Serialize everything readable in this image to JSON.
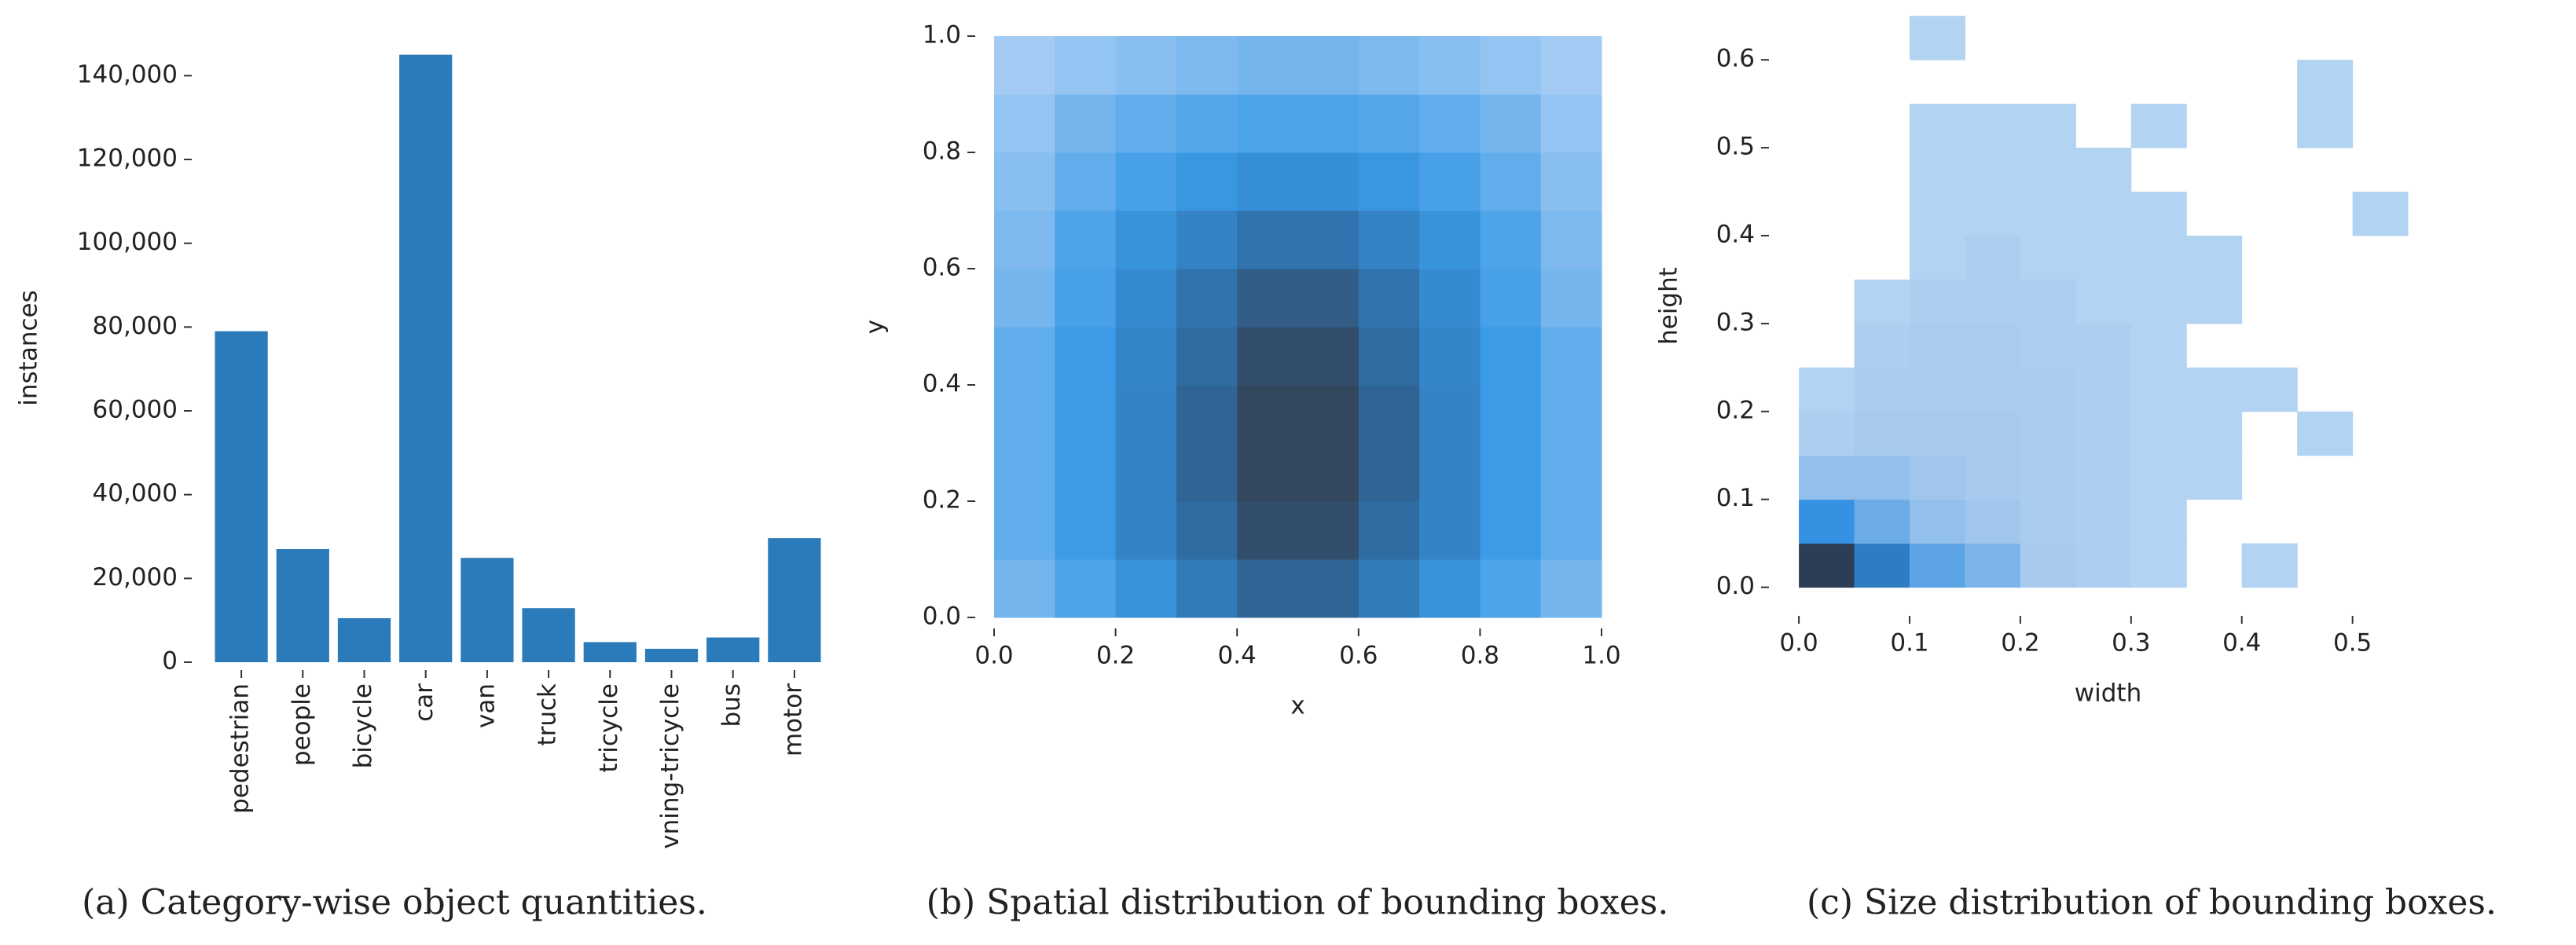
{
  "chart_data": [
    {
      "type": "bar",
      "caption": "(a) Category-wise object quantities.",
      "ylabel": "instances",
      "categories": [
        "pedestrian",
        "people",
        "bicycle",
        "car",
        "van",
        "truck",
        "tricycle",
        "vning-tricycle",
        "bus",
        "motor"
      ],
      "values": [
        79000,
        27000,
        10500,
        145000,
        24900,
        12900,
        4800,
        3200,
        5900,
        29600
      ],
      "color": "#2b7bba",
      "ylim": [
        0,
        150000
      ],
      "yticks": [
        0,
        {
          "value": 20000,
          "label": "20,000"
        },
        {
          "value": 40000,
          "label": "40,000"
        },
        {
          "value": 60000,
          "label": "60,000"
        },
        {
          "value": 80000,
          "label": "80,000"
        },
        {
          "value": 100000,
          "label": "100,000"
        },
        {
          "value": 120000,
          "label": "120,000"
        },
        {
          "value": 140000,
          "label": "140,000"
        }
      ]
    },
    {
      "type": "heatmap",
      "caption": "(b) Spatial distribution of bounding boxes.",
      "xlabel": "x",
      "ylabel": "y",
      "xlim": [
        0,
        1
      ],
      "ylim": [
        0,
        1
      ],
      "xticks": [
        {
          "value": 0,
          "label": "0.0"
        },
        0.2,
        0.4,
        0.6,
        0.8,
        {
          "value": 1,
          "label": "1.0"
        }
      ],
      "yticks": [
        {
          "value": 0,
          "label": "0.0"
        },
        0.2,
        0.4,
        0.6,
        0.8,
        {
          "value": 1,
          "label": "1.0"
        }
      ],
      "xbins": [
        0,
        0.1,
        0.2,
        0.3,
        0.4,
        0.5,
        0.6,
        0.7,
        0.8,
        0.9,
        1
      ],
      "ybins": [
        0,
        0.1,
        0.2,
        0.3,
        0.4,
        0.5,
        0.6,
        0.7,
        0.8,
        0.9,
        1
      ],
      "colors": [
        "#a3cbf3",
        "#3a9ae6",
        "#2f6fa8",
        "#33475e"
      ],
      "norm": "linear",
      "z": [
        [
          30,
          40,
          50,
          65,
          80,
          80,
          65,
          50,
          40,
          30
        ],
        [
          35,
          45,
          60,
          75,
          95,
          95,
          75,
          60,
          45,
          35
        ],
        [
          35,
          45,
          60,
          80,
          100,
          100,
          80,
          60,
          45,
          35
        ],
        [
          35,
          45,
          60,
          80,
          100,
          100,
          80,
          60,
          45,
          35
        ],
        [
          35,
          45,
          58,
          75,
          95,
          95,
          75,
          58,
          45,
          35
        ],
        [
          30,
          42,
          55,
          70,
          85,
          85,
          70,
          55,
          42,
          30
        ],
        [
          28,
          40,
          50,
          60,
          70,
          70,
          60,
          50,
          40,
          28
        ],
        [
          25,
          35,
          42,
          48,
          52,
          52,
          48,
          42,
          35,
          25
        ],
        [
          22,
          30,
          35,
          38,
          40,
          40,
          38,
          35,
          30,
          22
        ],
        [
          18,
          22,
          25,
          28,
          30,
          30,
          28,
          25,
          22,
          18
        ]
      ]
    },
    {
      "type": "heatmap",
      "caption": "(c) Size distribution of bounding boxes.",
      "xlabel": "width",
      "ylabel": "height",
      "xlim": [
        -0.01,
        0.54
      ],
      "ylim": [
        -0.02,
        0.66
      ],
      "xticks": [
        {
          "value": 0,
          "label": "0.0"
        },
        0.1,
        0.2,
        0.3,
        0.4,
        0.5
      ],
      "yticks": [
        {
          "value": 0,
          "label": "0.0"
        },
        0.1,
        0.2,
        0.3,
        0.4,
        0.5,
        0.6
      ],
      "xbins": [
        0,
        0.05,
        0.1,
        0.15,
        0.2,
        0.25,
        0.3,
        0.35,
        0.4,
        0.45,
        0.5,
        0.55
      ],
      "ybins": [
        0,
        0.05,
        0.1,
        0.15,
        0.2,
        0.25,
        0.3,
        0.35,
        0.4,
        0.45,
        0.5,
        0.55,
        0.6,
        0.65
      ],
      "colors": [
        "#b3d3f3",
        "#a6c9ee",
        "#2f8ee0",
        "#2b3e55"
      ],
      "norm": "log",
      "z": [
        [
          100,
          30,
          12,
          8,
          4,
          2,
          1,
          0,
          1,
          0,
          0
        ],
        [
          20,
          10,
          6,
          5,
          3,
          2,
          1,
          0,
          0,
          0,
          0
        ],
        [
          6,
          6,
          5,
          4,
          3,
          2,
          1,
          1,
          0,
          0,
          0
        ],
        [
          2,
          4,
          4,
          4,
          3,
          2,
          1,
          1,
          0,
          1,
          0
        ],
        [
          1,
          3,
          3,
          3,
          3,
          2,
          1,
          1,
          1,
          0,
          0
        ],
        [
          0,
          2,
          3,
          3,
          2,
          2,
          1,
          0,
          0,
          0,
          0
        ],
        [
          0,
          1,
          2,
          2,
          2,
          1,
          1,
          1,
          0,
          0,
          0
        ],
        [
          0,
          0,
          1,
          2,
          1,
          1,
          1,
          1,
          0,
          0,
          0
        ],
        [
          0,
          0,
          1,
          1,
          1,
          1,
          1,
          0,
          0,
          0,
          1
        ],
        [
          0,
          0,
          1,
          1,
          1,
          1,
          0,
          0,
          0,
          0,
          0
        ],
        [
          0,
          0,
          1,
          1,
          1,
          0,
          1,
          0,
          0,
          1,
          0
        ],
        [
          0,
          0,
          0,
          0,
          0,
          0,
          0,
          0,
          0,
          1,
          0
        ],
        [
          0,
          0,
          1,
          0,
          0,
          0,
          0,
          0,
          0,
          0,
          0
        ]
      ]
    }
  ]
}
